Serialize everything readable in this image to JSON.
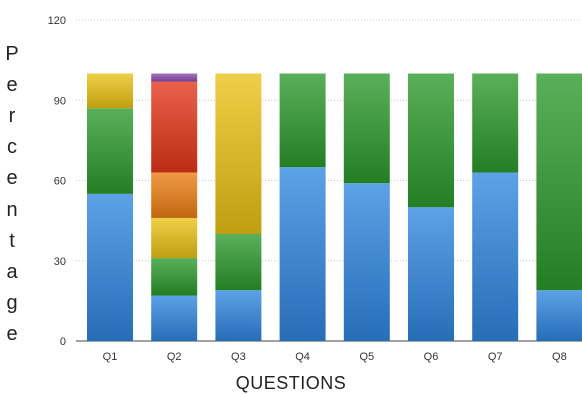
{
  "chart_data": {
    "type": "bar",
    "stacked": true,
    "title": "",
    "xlabel": "QUESTIONS",
    "ylabel": "Percentage",
    "ylim": [
      0,
      120
    ],
    "yticks": [
      0,
      30,
      60,
      90,
      120
    ],
    "grid": true,
    "categories": [
      "Q1",
      "Q2",
      "Q3",
      "Q4",
      "Q5",
      "Q6",
      "Q7",
      "Q8"
    ],
    "series": [
      {
        "color": "#2f86df",
        "values": [
          55,
          17,
          19,
          65,
          59,
          50,
          63,
          19
        ]
      },
      {
        "color": "#2c9a2c",
        "values": [
          32,
          14,
          21,
          35,
          41,
          50,
          37,
          81
        ]
      },
      {
        "color": "#e9c214",
        "values": [
          13,
          15,
          60,
          0,
          0,
          0,
          0,
          0
        ]
      },
      {
        "color": "#ec7d12",
        "values": [
          0,
          17,
          0,
          0,
          0,
          0,
          0,
          0
        ]
      },
      {
        "color": "#e4361a",
        "values": [
          0,
          34,
          0,
          0,
          0,
          0,
          0,
          0
        ]
      },
      {
        "color": "#8b4bb0",
        "values": [
          0,
          3,
          0,
          0,
          0,
          0,
          0,
          0
        ]
      }
    ]
  }
}
